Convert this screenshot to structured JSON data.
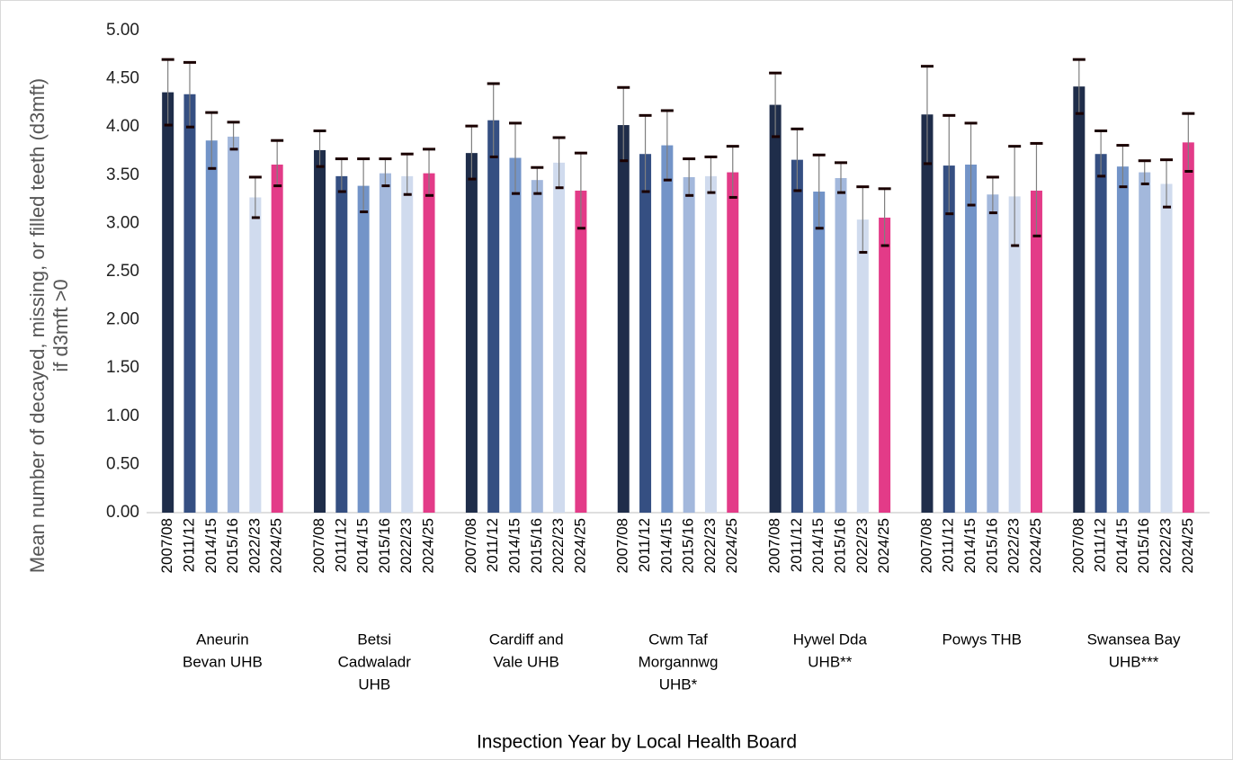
{
  "chart_data": {
    "type": "bar",
    "y_title": [
      "Mean number of decayed, missing, or filled teeth (d3mft)",
      "if d3mft >0"
    ],
    "x_title": "Inspection Year by Local Health Board",
    "categories": [
      [
        "Aneurin",
        "Bevan UHB"
      ],
      [
        "Betsi",
        "Cadwaladr",
        "UHB"
      ],
      [
        "Cardiff and",
        "Vale UHB"
      ],
      [
        "Cwm Taf",
        "Morgannwg",
        "UHB*"
      ],
      [
        "Hywel Dda",
        "UHB**"
      ],
      [
        "Powys THB"
      ],
      [
        "Swansea Bay",
        "UHB***"
      ]
    ],
    "series": [
      {
        "name": "2007/08",
        "color": "#1f2d4a",
        "values": [
          4.36,
          3.76,
          3.73,
          4.02,
          4.23,
          4.13,
          4.42
        ],
        "upper": [
          4.7,
          3.96,
          4.01,
          4.41,
          4.56,
          4.63,
          4.7
        ],
        "lower": [
          4.02,
          3.59,
          3.46,
          3.65,
          3.9,
          3.62,
          4.14
        ]
      },
      {
        "name": "2011/12",
        "color": "#354f82",
        "values": [
          4.34,
          3.49,
          4.07,
          3.72,
          3.66,
          3.6,
          3.72
        ],
        "upper": [
          4.67,
          3.67,
          4.45,
          4.12,
          3.98,
          4.12,
          3.96
        ],
        "lower": [
          4.0,
          3.33,
          3.69,
          3.33,
          3.34,
          3.1,
          3.49
        ]
      },
      {
        "name": "2014/15",
        "color": "#7394c8",
        "values": [
          3.86,
          3.39,
          3.68,
          3.81,
          3.33,
          3.61,
          3.59
        ],
        "upper": [
          4.15,
          3.67,
          4.04,
          4.17,
          3.71,
          4.04,
          3.81
        ],
        "lower": [
          3.57,
          3.12,
          3.31,
          3.45,
          2.95,
          3.19,
          3.38
        ]
      },
      {
        "name": "2015/16",
        "color": "#a3b8dc",
        "values": [
          3.9,
          3.52,
          3.45,
          3.48,
          3.47,
          3.3,
          3.53
        ],
        "upper": [
          4.05,
          3.67,
          3.58,
          3.67,
          3.63,
          3.48,
          3.65
        ],
        "lower": [
          3.77,
          3.39,
          3.31,
          3.29,
          3.32,
          3.11,
          3.41
        ]
      },
      {
        "name": "2022/23",
        "color": "#d0dbee",
        "values": [
          3.27,
          3.49,
          3.63,
          3.49,
          3.04,
          3.28,
          3.41
        ],
        "upper": [
          3.48,
          3.72,
          3.89,
          3.69,
          3.38,
          3.8,
          3.66
        ],
        "lower": [
          3.06,
          3.3,
          3.37,
          3.32,
          2.7,
          2.77,
          3.17
        ]
      },
      {
        "name": "2024/25",
        "color": "#e33b88",
        "values": [
          3.61,
          3.52,
          3.34,
          3.53,
          3.06,
          3.34,
          3.84
        ],
        "upper": [
          3.86,
          3.77,
          3.73,
          3.8,
          3.36,
          3.83,
          4.14
        ],
        "lower": [
          3.39,
          3.29,
          2.95,
          3.27,
          2.77,
          2.87,
          3.54
        ]
      }
    ],
    "ylim": [
      0,
      5
    ],
    "yticks": [
      {
        "value": 0,
        "label": "0.00"
      },
      {
        "value": 0.5,
        "label": "0.50"
      },
      {
        "value": 1,
        "label": "1.00"
      },
      {
        "value": 1.5,
        "label": "1.50"
      },
      {
        "value": 2,
        "label": "2.00"
      },
      {
        "value": 2.5,
        "label": "2.50"
      },
      {
        "value": 3,
        "label": "3.00"
      },
      {
        "value": 3.5,
        "label": "3.50"
      },
      {
        "value": 4,
        "label": "4.00"
      },
      {
        "value": 4.5,
        "label": "4.50"
      },
      {
        "value": 5,
        "label": "5.00"
      }
    ],
    "grid": false
  }
}
